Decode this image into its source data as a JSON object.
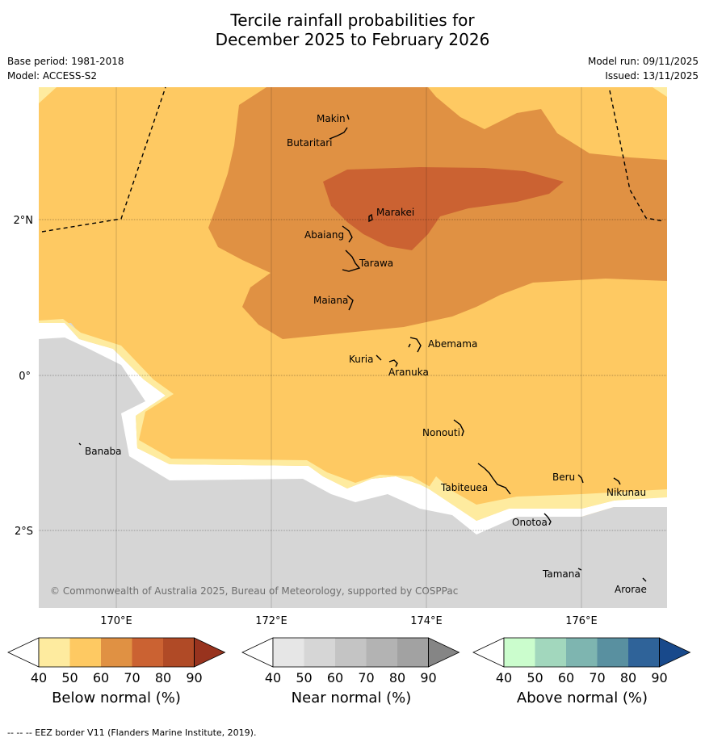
{
  "title": {
    "line1": "Tercile rainfall probabilities for",
    "line2": "December 2025 to February 2026"
  },
  "meta": {
    "base_period": "Base period: 1981-2018",
    "model": "Model: ACCESS-S2",
    "model_run": "Model run: 09/11/2025",
    "issued": "Issued: 13/11/2025"
  },
  "map": {
    "copyright": "© Commonwealth of Australia 2025, Bureau of Meteorology, supported by COSPPac",
    "lon_ticks": [
      "170°E",
      "172°E",
      "174°E",
      "176°E"
    ],
    "lat_ticks": [
      "2°N",
      "0°",
      "2°S"
    ],
    "places": [
      "Makin",
      "Butaritari",
      "Marakei",
      "Abaiang",
      "Tarawa",
      "Maiana",
      "Abemama",
      "Kuria",
      "Aranuka",
      "Banaba",
      "Nonouti",
      "Beru",
      "Tabiteuea",
      "Nikunau",
      "Onotoa",
      "Tamana",
      "Arorae"
    ]
  },
  "colorbars": [
    {
      "label": "Below normal (%)",
      "ticks": [
        "40",
        "50",
        "60",
        "70",
        "80",
        "90"
      ],
      "colors": [
        "#ffffff",
        "#feeb9f",
        "#fec962",
        "#e09143",
        "#cb6232",
        "#b04a26",
        "#98331e"
      ]
    },
    {
      "label": "Near normal (%)",
      "ticks": [
        "40",
        "50",
        "60",
        "70",
        "80",
        "90"
      ],
      "colors": [
        "#ffffff",
        "#e6e6e6",
        "#d6d6d6",
        "#c4c4c4",
        "#b3b3b3",
        "#a2a2a2",
        "#858585"
      ]
    },
    {
      "label": "Above normal (%)",
      "ticks": [
        "40",
        "50",
        "60",
        "70",
        "80",
        "90"
      ],
      "colors": [
        "#ffffff",
        "#cbfdcd",
        "#a2d7bd",
        "#7eb5b0",
        "#5990a0",
        "#2f6399",
        "#18498b"
      ]
    }
  ],
  "footer": "--  --  -- EEZ border V11 (Flanders Marine Institute, 2019)."
}
